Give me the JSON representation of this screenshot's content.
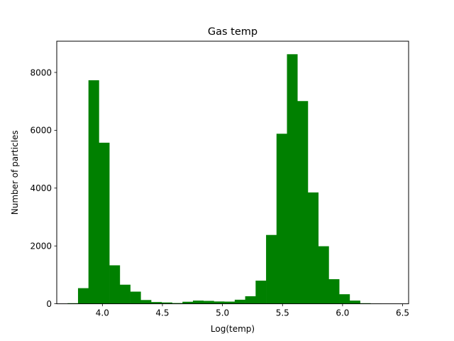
{
  "chart_data": {
    "type": "bar",
    "title": "Gas temp",
    "xlabel": "Log(temp)",
    "ylabel": "Number of particles",
    "xlim": [
      3.62,
      6.55
    ],
    "ylim": [
      0,
      9080
    ],
    "xticks": [
      4.0,
      4.5,
      5.0,
      5.5,
      6.0,
      6.5
    ],
    "xtick_labels": [
      "4.0",
      "4.5",
      "5.0",
      "5.5",
      "6.0",
      "6.5"
    ],
    "yticks": [
      0,
      2000,
      4000,
      6000,
      8000
    ],
    "ytick_labels": [
      "0",
      "2000",
      "4000",
      "6000",
      "8000"
    ],
    "grid": false,
    "bar_color": "#008000",
    "bin_edges": [
      3.71,
      3.797,
      3.884,
      3.971,
      4.058,
      4.145,
      4.232,
      4.319,
      4.406,
      4.493,
      4.58,
      4.667,
      4.754,
      4.841,
      4.928,
      5.015,
      5.102,
      5.189,
      5.276,
      5.363,
      5.45,
      5.537,
      5.624,
      5.711,
      5.798,
      5.885,
      5.972,
      6.059,
      6.146,
      6.233,
      6.32,
      6.407
    ],
    "counts": [
      20,
      540,
      7730,
      5570,
      1330,
      660,
      420,
      130,
      60,
      45,
      25,
      70,
      110,
      100,
      80,
      75,
      140,
      260,
      800,
      2380,
      5880,
      8630,
      7010,
      3850,
      1990,
      850,
      330,
      110,
      20,
      5,
      2
    ]
  }
}
